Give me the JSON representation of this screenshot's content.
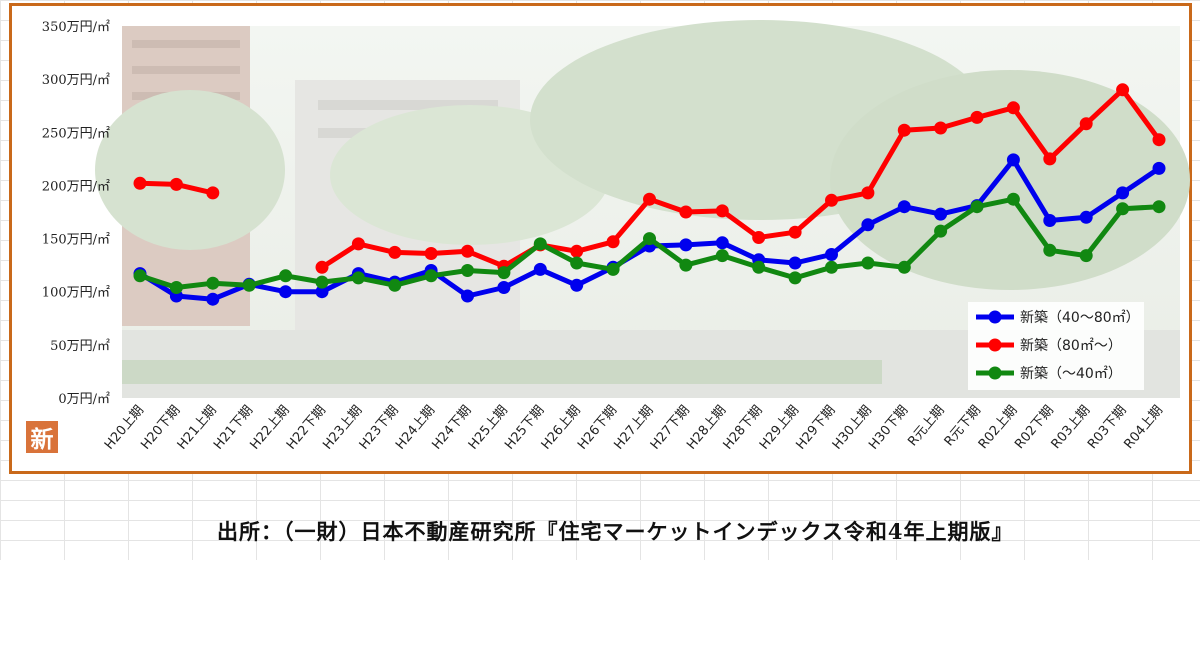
{
  "chart_data": {
    "type": "line",
    "title": "",
    "xlabel": "",
    "ylabel": "",
    "ylim": [
      0,
      350
    ],
    "yticks": [
      {
        "value": 0,
        "label": "0万円/㎡"
      },
      {
        "value": 50,
        "label": "50万円/㎡"
      },
      {
        "value": 100,
        "label": "100万円/㎡"
      },
      {
        "value": 150,
        "label": "150万円/㎡"
      },
      {
        "value": 200,
        "label": "200万円/㎡"
      },
      {
        "value": 250,
        "label": "250万円/㎡"
      },
      {
        "value": 300,
        "label": "300万円/㎡"
      },
      {
        "value": 350,
        "label": "350万円/㎡"
      }
    ],
    "categories": [
      "H20上期",
      "H20下期",
      "H21上期",
      "H21下期",
      "H22上期",
      "H22下期",
      "H23上期",
      "H23下期",
      "H24上期",
      "H24下期",
      "H25上期",
      "H25下期",
      "H26上期",
      "H26下期",
      "H27上期",
      "H27下期",
      "H28上期",
      "H28下期",
      "H29上期",
      "H29下期",
      "H30上期",
      "H30下期",
      "R元上期",
      "R元下期",
      "R02上期",
      "R02下期",
      "R03上期",
      "R03下期",
      "R04上期"
    ],
    "legend_position": "bottom-right",
    "series": [
      {
        "name": "新築（40～80㎡）",
        "color": "#0000ee",
        "values": [
          117,
          96,
          93,
          107,
          100,
          100,
          117,
          109,
          120,
          96,
          104,
          121,
          106,
          123,
          143,
          144,
          146,
          130,
          127,
          135,
          163,
          180,
          173,
          181,
          224,
          167,
          170,
          193,
          216
        ]
      },
      {
        "name": "新築（80㎡～）",
        "color": "#ff0000",
        "values": [
          202,
          201,
          193,
          null,
          null,
          123,
          145,
          137,
          136,
          138,
          124,
          144,
          138,
          147,
          187,
          175,
          176,
          151,
          156,
          186,
          193,
          252,
          254,
          264,
          273,
          225,
          258,
          290,
          243
        ]
      },
      {
        "name": "新築（～40㎡）",
        "color": "#118811",
        "values": [
          115,
          104,
          108,
          106,
          115,
          109,
          113,
          106,
          115,
          120,
          118,
          145,
          127,
          121,
          150,
          125,
          134,
          123,
          113,
          123,
          127,
          123,
          157,
          180,
          187,
          139,
          134,
          178,
          180
        ]
      }
    ]
  },
  "logo_char": "新",
  "source_text": "出所：（一財）日本不動産研究所『住宅マーケットインデックス令和4年上期版』"
}
